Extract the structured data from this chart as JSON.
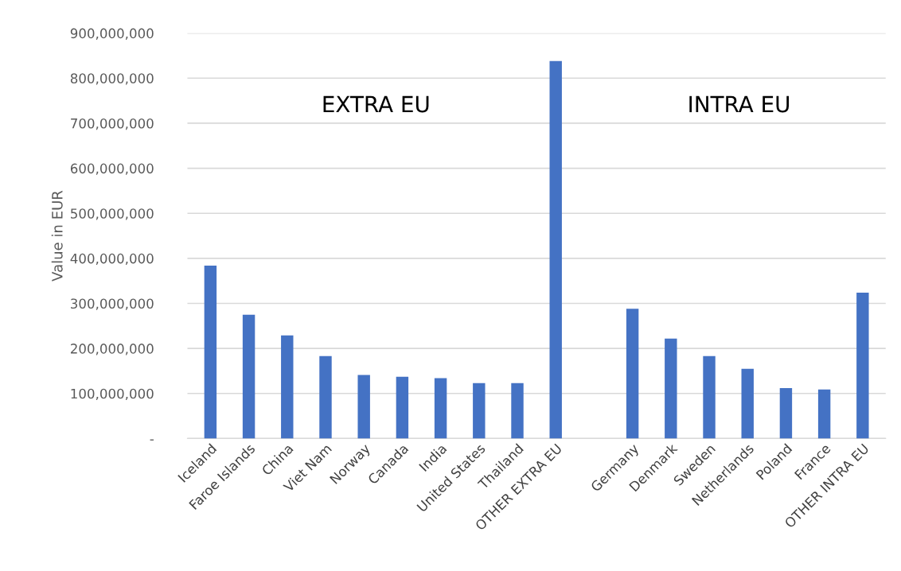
{
  "chart_data": {
    "type": "bar",
    "ylabel": "Value in EUR",
    "categories": [
      "Iceland",
      "Faroe Islands",
      "China",
      "Viet Nam",
      "Norway",
      "Canada",
      "India",
      "United States",
      "Thailand",
      "OTHER EXTRA EU",
      null,
      "Germany",
      "Denmark",
      "Sweden",
      "Netherlands",
      "Poland",
      "France",
      "OTHER INTRA EU"
    ],
    "values": [
      384000000,
      275000000,
      229000000,
      183000000,
      141000000,
      137000000,
      134000000,
      123000000,
      123000000,
      838000000,
      null,
      288000000,
      222000000,
      183000000,
      155000000,
      112000000,
      109000000,
      324000000
    ],
    "color": "#4472c4",
    "ylim": [
      0,
      900000000
    ],
    "yticks": [
      {
        "value": 0,
        "label": "-"
      },
      {
        "value": 100000000,
        "label": "100,000,000"
      },
      {
        "value": 200000000,
        "label": "200,000,000"
      },
      {
        "value": 300000000,
        "label": "300,000,000"
      },
      {
        "value": 400000000,
        "label": "400,000,000"
      },
      {
        "value": 500000000,
        "label": "500,000,000"
      },
      {
        "value": 600000000,
        "label": "600,000,000"
      },
      {
        "value": 700000000,
        "label": "700,000,000"
      },
      {
        "value": 800000000,
        "label": "800,000,000"
      },
      {
        "value": 900000000,
        "label": "900,000,000"
      }
    ],
    "grid": "y",
    "annotations": [
      "EXTRA EU",
      "INTRA EU"
    ]
  }
}
